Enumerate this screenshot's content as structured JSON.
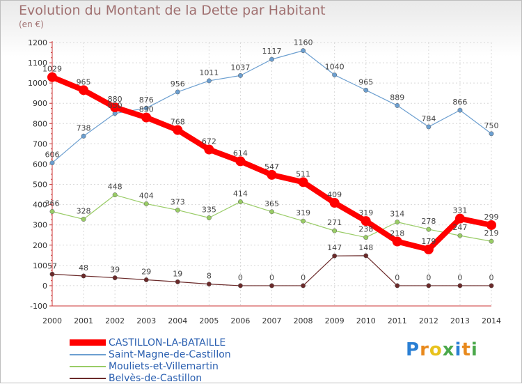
{
  "chart_data": {
    "type": "line",
    "title": "Evolution du Montant de la Dette par Habitant",
    "subtitle": "(en €)",
    "xlabel": "",
    "ylabel": "",
    "x": [
      "2000",
      "2001",
      "2002",
      "2003",
      "2004",
      "2005",
      "2006",
      "2007",
      "2008",
      "2009",
      "2010",
      "2011",
      "2012",
      "2013",
      "2014"
    ],
    "ylim": [
      -100,
      1200
    ],
    "yticks": [
      "-100",
      "0",
      "100",
      "200",
      "300",
      "400",
      "500",
      "600",
      "700",
      "800",
      "900",
      "1000",
      "1100",
      "1200"
    ],
    "grid": true,
    "legend_position": "bottom-left",
    "series": [
      {
        "name": "CASTILLON-LA-BATAILLE",
        "color": "#ff0000",
        "values": [
          1029,
          965,
          880,
          830,
          768,
          672,
          614,
          547,
          511,
          409,
          319,
          218,
          179,
          331,
          299
        ]
      },
      {
        "name": "Saint-Magne-de-Castillon",
        "color": "#6c9fd0",
        "values": [
          606,
          738,
          850,
          876,
          956,
          1011,
          1037,
          1117,
          1160,
          1040,
          965,
          889,
          784,
          866,
          750
        ]
      },
      {
        "name": "Mouliets-et-Villemartin",
        "color": "#99cc66",
        "values": [
          366,
          328,
          448,
          404,
          373,
          335,
          414,
          365,
          319,
          271,
          238,
          314,
          278,
          247,
          219
        ]
      },
      {
        "name": "Belvès-de-Castillon",
        "color": "#6b2a2a",
        "values": [
          57,
          48,
          39,
          29,
          19,
          8,
          0,
          0,
          0,
          147,
          148,
          0,
          0,
          0,
          0
        ]
      }
    ]
  },
  "logo": {
    "text": "Proxiti",
    "letters": [
      "P",
      "r",
      "o",
      "x",
      "i",
      "t",
      "i"
    ],
    "colors": [
      "#2a7fd4",
      "#e8891c",
      "#e8c21c",
      "#4aa84a",
      "#2a7fd4",
      "#e8891c",
      "#4aa84a"
    ]
  }
}
